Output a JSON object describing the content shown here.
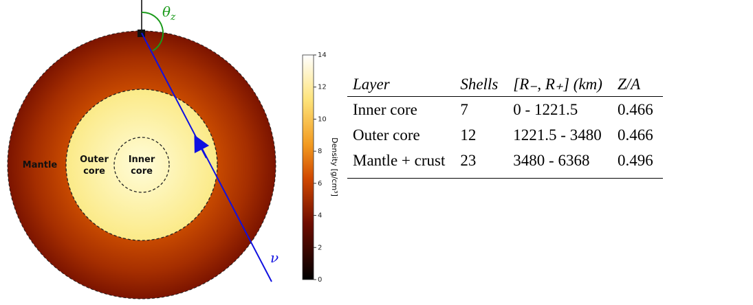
{
  "diagram": {
    "labels": {
      "mantle": "Mantle",
      "outer_core": "Outer core",
      "inner_core": "Inner core"
    },
    "zenith_symbol": "θ",
    "zenith_subscript": "z",
    "neutrino": "ν"
  },
  "colorbar": {
    "label": "Density [g/cm³]",
    "range": [
      0,
      14
    ],
    "ticks": [
      0,
      2,
      4,
      6,
      8,
      10,
      12,
      14
    ]
  },
  "table": {
    "header": [
      "Layer",
      "Shells",
      "[R₋, R₊] (km)",
      "Z/A"
    ],
    "rows": [
      [
        "Inner core",
        "7",
        "0 - 1221.5",
        "0.466"
      ],
      [
        "Outer core",
        "12",
        "1221.5 - 3480",
        "0.466"
      ],
      [
        "Mantle + crust",
        "23",
        "3480 - 6368",
        "0.496"
      ]
    ]
  }
}
